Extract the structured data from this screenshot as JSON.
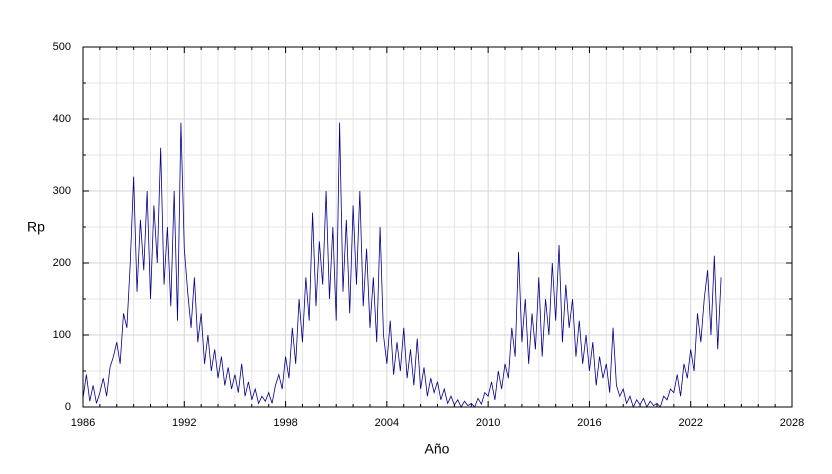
{
  "chart_data": {
    "type": "line",
    "x_label": "Año",
    "y_label": "Rp",
    "xlim": [
      1986,
      2028
    ],
    "ylim": [
      0,
      500
    ],
    "xticks": [
      1986,
      1992,
      1998,
      2004,
      2010,
      2016,
      2022,
      2028
    ],
    "minor_xticks": [
      1987,
      1988,
      1989,
      1990,
      1991,
      1993,
      1994,
      1995,
      1996,
      1997,
      1999,
      2000,
      2001,
      2002,
      2003,
      2005,
      2006,
      2007,
      2008,
      2009,
      2011,
      2012,
      2013,
      2014,
      2015,
      2017,
      2018,
      2019,
      2020,
      2021,
      2023,
      2024,
      2025,
      2026,
      2027
    ],
    "yticks": [
      0,
      100,
      200,
      300,
      400,
      500
    ],
    "minor_yticks": [
      50,
      150,
      250,
      350,
      450
    ],
    "grid": true,
    "series": [
      {
        "name": "Rp",
        "color": "#00008b",
        "x": [
          1986,
          1986.2,
          1986.4,
          1986.6,
          1986.8,
          1987,
          1987.2,
          1987.4,
          1987.6,
          1987.8,
          1988,
          1988.2,
          1988.4,
          1988.6,
          1988.8,
          1989,
          1989.2,
          1989.4,
          1989.6,
          1989.8,
          1990,
          1990.2,
          1990.4,
          1990.6,
          1990.8,
          1991,
          1991.2,
          1991.4,
          1991.6,
          1991.8,
          1992,
          1992.2,
          1992.4,
          1992.6,
          1992.8,
          1993,
          1993.2,
          1993.4,
          1993.6,
          1993.8,
          1994,
          1994.2,
          1994.4,
          1994.6,
          1994.8,
          1995,
          1995.2,
          1995.4,
          1995.6,
          1995.8,
          1996,
          1996.2,
          1996.4,
          1996.6,
          1996.8,
          1997,
          1997.2,
          1997.4,
          1997.6,
          1997.8,
          1998,
          1998.2,
          1998.4,
          1998.6,
          1998.8,
          1999,
          1999.2,
          1999.4,
          1999.6,
          1999.8,
          2000,
          2000.2,
          2000.4,
          2000.6,
          2000.8,
          2001,
          2001.2,
          2001.4,
          2001.6,
          2001.8,
          2002,
          2002.2,
          2002.4,
          2002.6,
          2002.8,
          2003,
          2003.2,
          2003.4,
          2003.6,
          2003.8,
          2004,
          2004.2,
          2004.4,
          2004.6,
          2004.8,
          2005,
          2005.2,
          2005.4,
          2005.6,
          2005.8,
          2006,
          2006.2,
          2006.4,
          2006.6,
          2006.8,
          2007,
          2007.2,
          2007.4,
          2007.6,
          2007.8,
          2008,
          2008.2,
          2008.4,
          2008.6,
          2008.8,
          2009,
          2009.2,
          2009.4,
          2009.6,
          2009.8,
          2010,
          2010.2,
          2010.4,
          2010.6,
          2010.8,
          2011,
          2011.2,
          2011.4,
          2011.6,
          2011.8,
          2012,
          2012.2,
          2012.4,
          2012.6,
          2012.8,
          2013,
          2013.2,
          2013.4,
          2013.6,
          2013.8,
          2014,
          2014.2,
          2014.4,
          2014.6,
          2014.8,
          2015,
          2015.2,
          2015.4,
          2015.6,
          2015.8,
          2016,
          2016.2,
          2016.4,
          2016.6,
          2016.8,
          2017,
          2017.2,
          2017.4,
          2017.6,
          2017.8,
          2018,
          2018.2,
          2018.4,
          2018.6,
          2018.8,
          2019,
          2019.2,
          2019.4,
          2019.6,
          2019.8,
          2020,
          2020.2,
          2020.4,
          2020.6,
          2020.8,
          2021,
          2021.2,
          2021.4,
          2021.6,
          2021.8,
          2022,
          2022.2,
          2022.4,
          2022.6,
          2022.8,
          2023,
          2023.2,
          2023.4,
          2023.6,
          2023.8
        ],
        "values": [
          12,
          45,
          8,
          30,
          5,
          20,
          40,
          15,
          55,
          70,
          90,
          60,
          130,
          110,
          200,
          320,
          160,
          260,
          190,
          300,
          150,
          280,
          200,
          360,
          170,
          250,
          140,
          300,
          120,
          395,
          220,
          160,
          110,
          180,
          90,
          130,
          60,
          100,
          50,
          80,
          40,
          70,
          30,
          55,
          25,
          45,
          20,
          60,
          15,
          35,
          10,
          25,
          5,
          15,
          8,
          20,
          5,
          30,
          45,
          25,
          70,
          40,
          110,
          60,
          150,
          90,
          180,
          120,
          270,
          140,
          230,
          170,
          300,
          150,
          250,
          120,
          395,
          160,
          260,
          130,
          280,
          170,
          300,
          140,
          220,
          110,
          180,
          90,
          250,
          100,
          60,
          120,
          45,
          90,
          50,
          110,
          40,
          80,
          30,
          95,
          25,
          55,
          15,
          40,
          20,
          35,
          10,
          25,
          5,
          15,
          3,
          10,
          0,
          8,
          2,
          5,
          0,
          12,
          4,
          20,
          15,
          35,
          10,
          50,
          25,
          60,
          40,
          110,
          70,
          215,
          90,
          150,
          60,
          130,
          80,
          180,
          70,
          150,
          100,
          200,
          120,
          225,
          90,
          170,
          110,
          150,
          70,
          120,
          60,
          100,
          50,
          90,
          30,
          70,
          40,
          60,
          20,
          110,
          30,
          15,
          25,
          5,
          15,
          0,
          10,
          3,
          12,
          0,
          8,
          2,
          5,
          0,
          15,
          10,
          25,
          20,
          45,
          15,
          60,
          40,
          80,
          50,
          130,
          90,
          150,
          190,
          100,
          210,
          80,
          180
        ]
      }
    ]
  }
}
